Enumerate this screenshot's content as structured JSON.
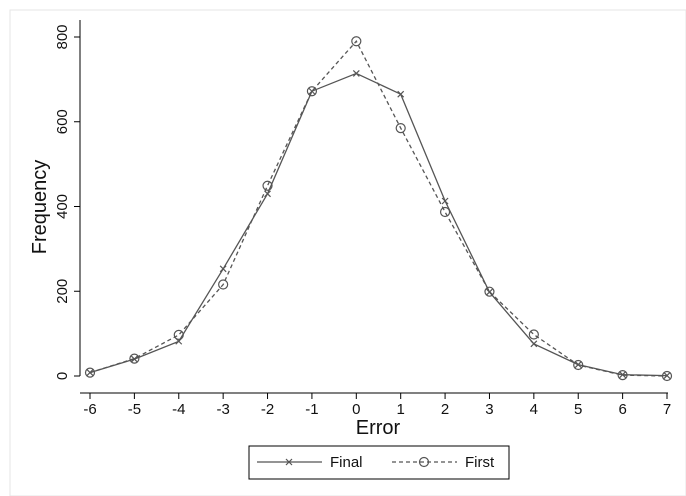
{
  "chart_data": {
    "type": "line",
    "title": "",
    "xlabel": "Error",
    "ylabel": "Frequency",
    "x": [
      -6,
      -5,
      -4,
      -3,
      -2,
      -1,
      0,
      1,
      2,
      3,
      4,
      5,
      6,
      7
    ],
    "xlim": [
      -6,
      7
    ],
    "ylim": [
      0,
      800
    ],
    "xticks": [
      "-6",
      "-5",
      "-4",
      "-3",
      "-2",
      "-1",
      "0",
      "1",
      "2",
      "3",
      "4",
      "5",
      "6",
      "7"
    ],
    "yticks": [
      "0",
      "200",
      "400",
      "600",
      "800"
    ],
    "grid": false,
    "legend_position": "bottom",
    "series": [
      {
        "name": "Final",
        "values": [
          8,
          40,
          82,
          253,
          430,
          672,
          714,
          665,
          413,
          198,
          76,
          27,
          3,
          1
        ],
        "line_style": "solid",
        "marker": "x",
        "color": "#555555"
      },
      {
        "name": "First",
        "values": [
          8,
          41,
          97,
          216,
          449,
          672,
          790,
          585,
          387,
          199,
          98,
          26,
          2,
          0
        ],
        "line_style": "dashed",
        "marker": "circle",
        "color": "#555555"
      }
    ]
  }
}
